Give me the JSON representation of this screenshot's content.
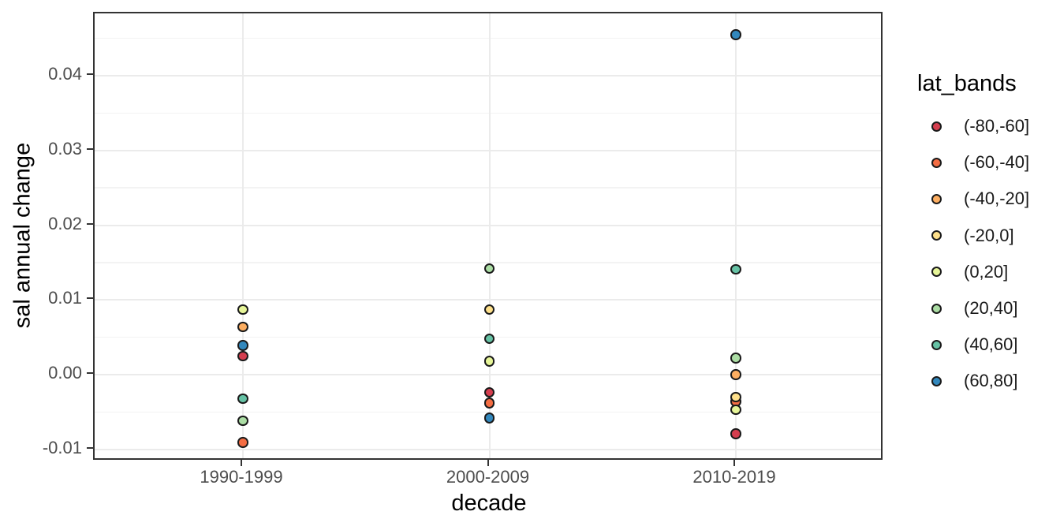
{
  "figure": {
    "background_color": "#ffffff",
    "panel_border_color": "#333333",
    "grid_major_color": "#ebebeb",
    "grid_minor_color": "#f3f3f3",
    "tick_color": "#333333",
    "tick_label_color": "#4d4d4d",
    "axis_title_color": "#000000",
    "legend_text_color": "#1a1a1a"
  },
  "chart_data": {
    "type": "scatter",
    "title": "",
    "xlabel": "decade",
    "ylabel": "sal annual change",
    "legend_title": "lat_bands",
    "legend_position": "right",
    "grid": true,
    "categories": [
      "1990-1999",
      "2000-2009",
      "2010-2019"
    ],
    "ylim": [
      -0.0117,
      0.0483
    ],
    "y_major_ticks": [
      0.04,
      0.03,
      0.02,
      0.01,
      0.0,
      -0.01
    ],
    "y_tick_labels": [
      "0.04",
      "0.03",
      "0.02",
      "0.01",
      "0.00",
      "-0.01"
    ],
    "y_minor_gridlines": [
      0.045,
      0.035,
      0.025,
      0.015,
      0.005,
      -0.005
    ],
    "series": [
      {
        "name": "(-80,-60]",
        "color": "#D53E4F",
        "values": [
          0.0025,
          -0.0024,
          -0.0079
        ]
      },
      {
        "name": "(-60,-40]",
        "color": "#F46D43",
        "values": [
          -0.0091,
          -0.0038,
          -0.0036
        ]
      },
      {
        "name": "(-40,-20]",
        "color": "#FDAE61",
        "values": [
          0.0064,
          null,
          0.0
        ]
      },
      {
        "name": "(-20,0]",
        "color": "#FEE08B",
        "values": [
          null,
          0.0087,
          -0.003
        ]
      },
      {
        "name": "(0,20]",
        "color": "#E6F598",
        "values": [
          0.0087,
          0.0018,
          -0.0047
        ]
      },
      {
        "name": "(20,40]",
        "color": "#ABDDA4",
        "values": [
          -0.0062,
          0.0142,
          0.0022
        ]
      },
      {
        "name": "(40,60]",
        "color": "#66C2A5",
        "values": [
          -0.0032,
          0.0048,
          0.0141
        ]
      },
      {
        "name": "(60,80]",
        "color": "#3288BD",
        "values": [
          0.0039,
          -0.0058,
          0.0455
        ]
      }
    ]
  }
}
